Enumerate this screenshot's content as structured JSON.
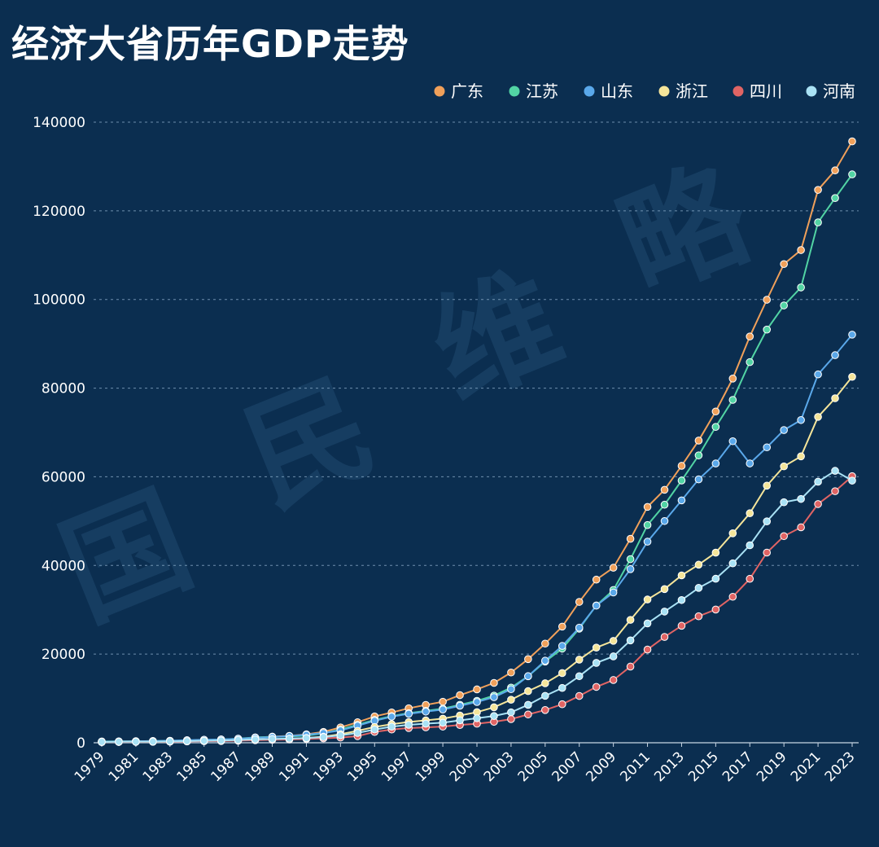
{
  "watermark_text": "国民维略",
  "chart_data": {
    "type": "line",
    "title": "经济大省历年GDP走势",
    "xlabel": "",
    "ylabel": "",
    "ylim": [
      0,
      140000
    ],
    "yticks": [
      0,
      20000,
      40000,
      60000,
      80000,
      100000,
      120000,
      140000
    ],
    "xtick_labels": [
      "1979",
      "1981",
      "1983",
      "1985",
      "1987",
      "1989",
      "1991",
      "1993",
      "1995",
      "1997",
      "1999",
      "2001",
      "2003",
      "2005",
      "2007",
      "2009",
      "2011",
      "2013",
      "2015",
      "2017",
      "2019",
      "2021",
      "2023"
    ],
    "legend_position": "top-right",
    "grid": "horizontal-dashed",
    "x": [
      1979,
      1980,
      1981,
      1982,
      1983,
      1984,
      1985,
      1986,
      1987,
      1988,
      1989,
      1990,
      1991,
      1992,
      1993,
      1994,
      1995,
      1996,
      1997,
      1998,
      1999,
      2000,
      2001,
      2002,
      2003,
      2004,
      2005,
      2006,
      2007,
      2008,
      2009,
      2010,
      2011,
      2012,
      2013,
      2014,
      2015,
      2016,
      2017,
      2018,
      2019,
      2020,
      2021,
      2022,
      2023
    ],
    "series": [
      {
        "name": "广东",
        "color": "#f0a05a",
        "values": [
          209,
          250,
          290,
          340,
          368,
          459,
          577,
          668,
          846,
          1155,
          1381,
          1559,
          1893,
          2448,
          3469,
          4619,
          5934,
          6835,
          7775,
          8531,
          9251,
          10741,
          12039,
          13502,
          15845,
          18865,
          22367,
          26204,
          31777,
          36797,
          39483,
          46013,
          53210,
          57068,
          62475,
          68174,
          74732,
          82163,
          91649,
          99945,
          107987,
          111152,
          124720,
          129119,
          135673
        ]
      },
      {
        "name": "江苏",
        "color": "#52d4a4",
        "values": [
          298,
          320,
          350,
          390,
          437,
          519,
          652,
          744,
          923,
          1209,
          1322,
          1417,
          1601,
          2136,
          2998,
          4057,
          5155,
          6004,
          6680,
          7200,
          7698,
          8554,
          9457,
          10631,
          12443,
          15004,
          18306,
          21240,
          25741,
          30982,
          34457,
          41425,
          49110,
          53702,
          59162,
          64830,
          71256,
          77351,
          85870,
          93208,
          98657,
          102719,
          117392,
          122876,
          128222
        ]
      },
      {
        "name": "山东",
        "color": "#5aa8ea",
        "values": [
          225,
          292,
          346,
          395,
          459,
          581,
          681,
          742,
          892,
          1118,
          1294,
          1511,
          1811,
          2197,
          2771,
          3844,
          4953,
          5884,
          6537,
          7021,
          7493,
          8338,
          9195,
          10275,
          12078,
          15022,
          18517,
          21847,
          25966,
          30933,
          33897,
          39170,
          45362,
          50013,
          54684,
          59426,
          63002,
          68024,
          63012,
          66649,
          70540,
          72798,
          83096,
          87435,
          92069
        ]
      },
      {
        "name": "浙江",
        "color": "#f5e59a",
        "values": [
          157,
          180,
          204,
          234,
          257,
          323,
          429,
          502,
          606,
          770,
          849,
          904,
          1089,
          1376,
          1926,
          2689,
          3557,
          4188,
          4686,
          5052,
          5444,
          6141,
          6898,
          8004,
          9705,
          11649,
          13418,
          15718,
          18754,
          21463,
          22990,
          27722,
          32319,
          34665,
          37757,
          40173,
          42886,
          47251,
          51768,
          58003,
          62352,
          64613,
          73516,
          77715,
          82553
        ]
      },
      {
        "name": "四川",
        "color": "#e06464",
        "values": [
          150,
          180,
          200,
          220,
          250,
          300,
          358,
          401,
          474,
          577,
          660,
          746,
          850,
          991,
          1177,
          1490,
          2443,
          2985,
          3320,
          3474,
          3649,
          4010,
          4293,
          4725,
          5333,
          6380,
          7385,
          8690,
          10562,
          12601,
          14151,
          17185,
          21027,
          23873,
          26393,
          28537,
          30053,
          32935,
          36980,
          42902,
          46616,
          48599,
          53851,
          56750,
          60133
        ]
      },
      {
        "name": "河南",
        "color": "#a9e2f5",
        "values": [
          190,
          229,
          249,
          263,
          327,
          370,
          451,
          502,
          610,
          749,
          850,
          935,
          1046,
          1280,
          1660,
          2217,
          2988,
          3635,
          4042,
          4308,
          4518,
          5053,
          5533,
          6035,
          6868,
          8554,
          10587,
          12362,
          15012,
          18019,
          19480,
          23092,
          26931,
          29599,
          32191,
          34938,
          37002,
          40472,
          44553,
          49936,
          54259,
          54997,
          58887,
          61345,
          59132
        ]
      }
    ]
  }
}
